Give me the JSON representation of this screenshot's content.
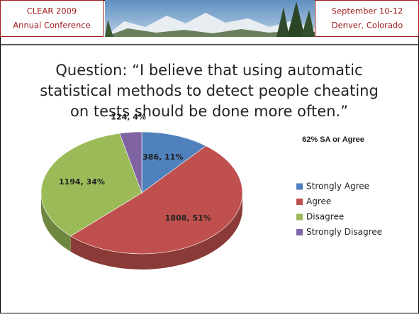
{
  "header": {
    "left": [
      "CLEAR 2009",
      "Annual Conference"
    ],
    "right": [
      "September 10-12",
      "Denver, Colorado"
    ]
  },
  "chart_data": {
    "type": "pie",
    "title": [
      "Question: “I believe that using automatic",
      "statistical methods to detect people cheating",
      "on tests should be done more often.”"
    ],
    "annotation": "62% SA or Agree",
    "categories": [
      "Strongly Agree",
      "Agree",
      "Disagree",
      "Strongly Disagree"
    ],
    "values": [
      386,
      1808,
      1194,
      124
    ],
    "value_labels": [
      "386, 11%",
      "1808, 51%",
      "1194, 34%",
      "124, 4%"
    ],
    "colors": [
      "#4f81bd",
      "#c0504d",
      "#9bbb59",
      "#8064a2"
    ],
    "legend": "right"
  }
}
